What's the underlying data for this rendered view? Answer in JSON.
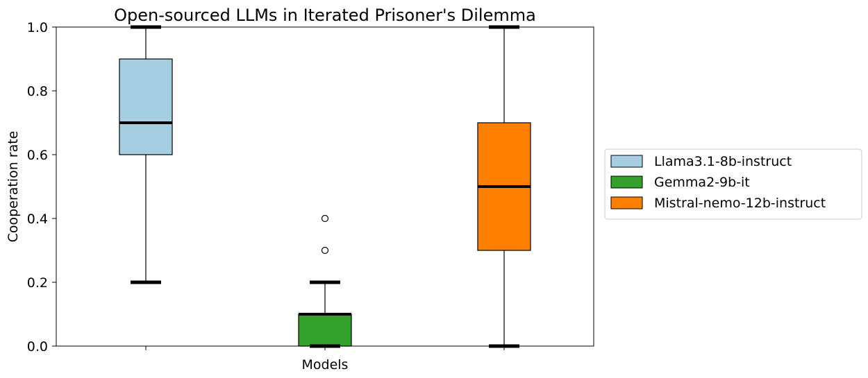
{
  "chart_data": {
    "type": "box",
    "title": "Open-sourced LLMs in Iterated Prisoner's Dilemma",
    "xlabel": "Models",
    "ylabel": "Cooperation rate",
    "ylim": [
      0,
      1
    ],
    "yticks": [
      "0.0",
      "0.2",
      "0.4",
      "0.6",
      "0.8",
      "1.0"
    ],
    "grid": false,
    "legend_position": "right (outside plot)",
    "series": [
      {
        "name": "Llama3.1-8b-instruct",
        "color": "#a6cee3",
        "whisker_low": 0.2,
        "q1": 0.6,
        "median": 0.7,
        "q3": 0.9,
        "whisker_high": 1.0,
        "outliers": []
      },
      {
        "name": "Gemma2-9b-it",
        "color": "#33a02c",
        "whisker_low": 0.0,
        "q1": 0.0,
        "median": 0.1,
        "q3": 0.1,
        "whisker_high": 0.2,
        "outliers": [
          0.3,
          0.4
        ]
      },
      {
        "name": "Mistral-nemo-12b-instruct",
        "color": "#ff7f00",
        "whisker_low": 0.0,
        "q1": 0.3,
        "median": 0.5,
        "q3": 0.7,
        "whisker_high": 1.0,
        "outliers": []
      }
    ]
  }
}
